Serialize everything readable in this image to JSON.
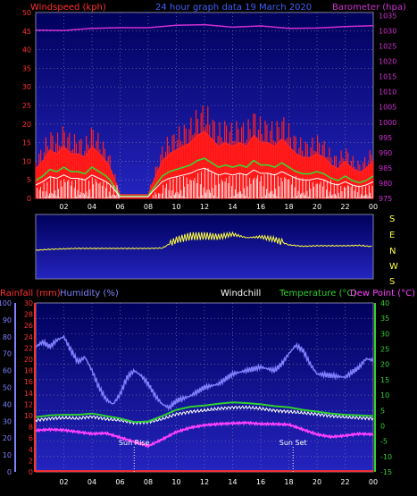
{
  "header": {
    "left_label": "Windspeed (kph)",
    "center_label": "24 hour graph data  19 March 2020",
    "right_label": "Barometer (hpa)"
  },
  "direction_labels": [
    "S",
    "E",
    "N",
    "W",
    "S"
  ],
  "bottom_header": {
    "rainfall_label": "Rainfall (mm)",
    "humidity_label": "Humidity (%)",
    "windchill_label": "Windchill",
    "temperature_label": "Temperature (°C)",
    "dewpoint_label": "Dew Point (°C)"
  },
  "annotations": {
    "sunrise": "Sun Rise",
    "sunset": "Sun Set"
  },
  "colors": {
    "background": "#000000",
    "plot_top": "#000070",
    "plot_bottom": "#1a1ab0",
    "windspeed_axis": "#ff3030",
    "barometer_axis": "#d030d0",
    "title": "#4060ff",
    "humidity": "#8080ff",
    "temperature": "#30d030",
    "dewpoint": "#ff40ff",
    "windchill": "#ffffff",
    "rainfall": "#ff3030",
    "direction": "#ffff40"
  },
  "chart_data": [
    {
      "type": "line",
      "name": "wind-barometer",
      "x_ticks": [
        "02",
        "04",
        "06",
        "08",
        "10",
        "12",
        "14",
        "16",
        "18",
        "20",
        "22",
        "00"
      ],
      "y_left_ticks": [
        "0",
        "5",
        "10",
        "15",
        "20",
        "25",
        "30",
        "35",
        "40",
        "45",
        "50"
      ],
      "y_right_ticks": [
        "975",
        "980",
        "985",
        "990",
        "995",
        "1000",
        "1005",
        "1010",
        "1015",
        "1020",
        "1025",
        "1030",
        "1035"
      ],
      "ylim_left": [
        0,
        50
      ],
      "ylim_right": [
        975,
        1036
      ],
      "xlim": [
        0,
        24
      ],
      "series": [
        {
          "name": "Windspeed (kph)",
          "axis": "left",
          "x": [
            0,
            0.5,
            1,
            1.5,
            2,
            2.5,
            3,
            3.5,
            4,
            4.5,
            5,
            5.3,
            6,
            7,
            8,
            8.3,
            9,
            9.5,
            10,
            10.5,
            11,
            11.5,
            12,
            12.5,
            13,
            13.5,
            14,
            14.5,
            15,
            15.5,
            16,
            16.5,
            17,
            17.5,
            18,
            18.5,
            19,
            19.5,
            20,
            20.5,
            21,
            21.5,
            22,
            22.5,
            23,
            23.5,
            24
          ],
          "y": [
            8,
            10,
            13,
            12,
            14,
            12,
            12,
            11,
            14,
            12,
            10,
            8,
            1,
            1,
            1,
            4,
            10,
            12,
            13,
            14,
            15,
            17,
            18,
            16,
            14,
            15,
            14,
            15,
            14,
            17,
            15,
            15,
            14,
            16,
            14,
            12,
            11,
            11,
            12,
            11,
            9,
            8,
            10,
            8,
            7,
            8,
            10
          ]
        },
        {
          "name": "Barometer (hpa)",
          "axis": "right",
          "x": [
            0,
            2,
            4,
            6,
            8,
            10,
            12,
            14,
            16,
            18,
            20,
            22,
            24
          ],
          "y": [
            1030.2,
            1030.1,
            1030.8,
            1031.0,
            1031.0,
            1031.8,
            1032.0,
            1031.2,
            1031.6,
            1030.8,
            1030.9,
            1031.4,
            1031.7
          ]
        }
      ]
    },
    {
      "type": "line",
      "name": "wind-direction",
      "x_ticks": [],
      "labels": [
        "S",
        "E",
        "N",
        "W",
        "S"
      ],
      "ylim": [
        0,
        360
      ],
      "xlim": [
        0,
        24
      ],
      "series": [
        {
          "name": "Wind direction",
          "x": [
            0,
            1,
            2,
            3,
            4,
            5,
            6,
            7,
            8,
            9,
            10,
            11,
            12,
            13,
            14,
            15,
            16,
            17,
            18,
            19,
            20,
            21,
            22,
            23,
            24
          ],
          "y": [
            160,
            165,
            168,
            170,
            170,
            170,
            170,
            170,
            170,
            172,
            218,
            238,
            240,
            235,
            250,
            230,
            235,
            220,
            190,
            182,
            185,
            185,
            185,
            187,
            180
          ]
        }
      ]
    },
    {
      "type": "line",
      "name": "temperature-humidity",
      "x_ticks": [
        "02",
        "04",
        "06",
        "08",
        "10",
        "12",
        "14",
        "16",
        "18",
        "20",
        "22",
        "00"
      ],
      "y_humidity_ticks": [
        "0",
        "10",
        "20",
        "30",
        "40",
        "50",
        "60",
        "70",
        "80",
        "90",
        "100"
      ],
      "y_rain_ticks": [
        "0",
        "2",
        "4",
        "6",
        "8",
        "10",
        "12",
        "14",
        "16",
        "18",
        "20",
        "22",
        "24",
        "26",
        "28",
        "30"
      ],
      "y_temp_ticks": [
        "-15",
        "-10",
        "-5",
        "0",
        "5",
        "10",
        "15",
        "20",
        "25",
        "30",
        "35",
        "40"
      ],
      "ylim_humidity": [
        0,
        100
      ],
      "ylim_temp": [
        -15,
        40
      ],
      "xlim": [
        0,
        24
      ],
      "sunrise_hour": 7.0,
      "sunset_hour": 18.3,
      "series": [
        {
          "name": "Humidity (%)",
          "axis": "humidity",
          "x": [
            0,
            0.5,
            1,
            1.5,
            2,
            2.5,
            3,
            3.5,
            4,
            4.5,
            5,
            5.5,
            6,
            6.5,
            7,
            7.5,
            8,
            8.5,
            9,
            9.5,
            10,
            11,
            12,
            13,
            14,
            15,
            16,
            17,
            17.5,
            18,
            18.5,
            19,
            19.5,
            20,
            21,
            22,
            23,
            23.5,
            24
          ],
          "y": [
            74,
            77,
            74,
            78,
            80,
            72,
            65,
            68,
            60,
            50,
            43,
            40,
            46,
            56,
            60,
            57,
            52,
            45,
            40,
            38,
            42,
            45,
            50,
            52,
            58,
            60,
            62,
            60,
            64,
            70,
            75,
            72,
            64,
            58,
            57,
            56,
            62,
            67,
            66
          ]
        },
        {
          "name": "Temperature (°C)",
          "axis": "temp",
          "x": [
            0,
            1,
            2,
            3,
            4,
            5,
            6,
            7,
            8,
            9,
            10,
            11,
            12,
            13,
            14,
            15,
            16,
            17,
            18,
            19,
            20,
            21,
            22,
            23,
            24
          ],
          "y": [
            2.8,
            3.4,
            3.6,
            3.6,
            4.0,
            3.2,
            2.4,
            1.2,
            1.4,
            3.2,
            5.2,
            6.2,
            6.6,
            7.2,
            7.6,
            7.4,
            7.0,
            6.4,
            6.0,
            5.2,
            4.6,
            4.0,
            3.6,
            3.4,
            3.2
          ]
        },
        {
          "name": "Dew Point (°C)",
          "axis": "temp",
          "x": [
            0,
            1,
            2,
            3,
            4,
            5,
            6,
            7,
            8,
            9,
            10,
            11,
            12,
            13,
            14,
            15,
            16,
            17,
            18,
            19,
            20,
            21,
            22,
            23,
            24
          ],
          "y": [
            -1.5,
            -1.2,
            -1.4,
            -2.0,
            -2.6,
            -2.4,
            -3.8,
            -5.2,
            -6.6,
            -4.4,
            -2.0,
            -0.6,
            0.2,
            0.6,
            0.8,
            1.0,
            0.6,
            0.6,
            0.4,
            -1.2,
            -2.8,
            -3.6,
            -3.2,
            -2.6,
            -2.8
          ]
        },
        {
          "name": "Windchill",
          "axis": "temp",
          "x": [
            0,
            1,
            2,
            3,
            4,
            5,
            6,
            7,
            8,
            9,
            10,
            11,
            12,
            13,
            14,
            15,
            16,
            17,
            18,
            19,
            20,
            21,
            22,
            23,
            24
          ],
          "y": [
            1.8,
            2.4,
            2.6,
            2.4,
            3.0,
            2.2,
            1.8,
            1.0,
            1.2,
            2.2,
            3.8,
            4.6,
            5.0,
            5.6,
            6.0,
            6.0,
            5.6,
            5.0,
            4.6,
            4.2,
            3.8,
            3.2,
            2.8,
            2.6,
            2.4
          ]
        },
        {
          "name": "Rainfall (mm)",
          "axis": "rain",
          "x": [
            0,
            24
          ],
          "y": [
            0,
            0
          ]
        }
      ]
    }
  ]
}
